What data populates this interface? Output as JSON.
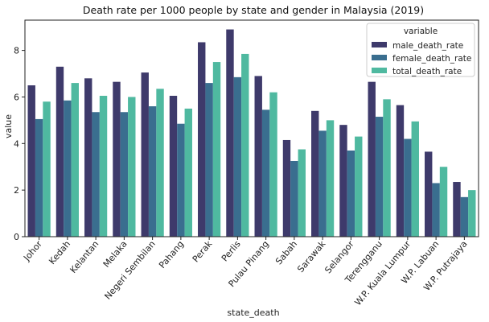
{
  "chart_data": {
    "type": "bar",
    "title": "Death rate per 1000 people by state and gender in Malaysia (2019)",
    "xlabel": "state_death",
    "ylabel": "value",
    "ylim": [
      0,
      9.3
    ],
    "yticks": [
      0,
      2,
      4,
      6,
      8
    ],
    "grid": false,
    "legend": {
      "title": "variable",
      "placement": "top-right"
    },
    "categories": [
      "Johor",
      "Kedah",
      "Kelantan",
      "Melaka",
      "Negeri Sembilan",
      "Pahang",
      "Perak",
      "Perlis",
      "Pulau Pinang",
      "Sabah",
      "Sarawak",
      "Selangor",
      "Terengganu",
      "W.P. Kuala Lumpur",
      "W.P. Labuan",
      "W.P. Putrajaya"
    ],
    "series": [
      {
        "name": "male_death_rate",
        "color": "#3e3a6b",
        "values": [
          6.5,
          7.3,
          6.8,
          6.65,
          7.05,
          6.05,
          8.35,
          8.9,
          6.9,
          4.15,
          5.4,
          4.8,
          6.65,
          5.65,
          3.65,
          2.35
        ]
      },
      {
        "name": "female_death_rate",
        "color": "#3a6e8f",
        "values": [
          5.05,
          5.85,
          5.35,
          5.35,
          5.6,
          4.85,
          6.6,
          6.85,
          5.45,
          3.25,
          4.55,
          3.7,
          5.15,
          4.2,
          2.3,
          1.7
        ]
      },
      {
        "name": "total_death_rate",
        "color": "#4fb9a0",
        "values": [
          5.8,
          6.6,
          6.05,
          6.0,
          6.35,
          5.5,
          7.5,
          7.85,
          6.2,
          3.75,
          5.0,
          4.3,
          5.9,
          4.95,
          3.0,
          2.0
        ]
      }
    ]
  }
}
